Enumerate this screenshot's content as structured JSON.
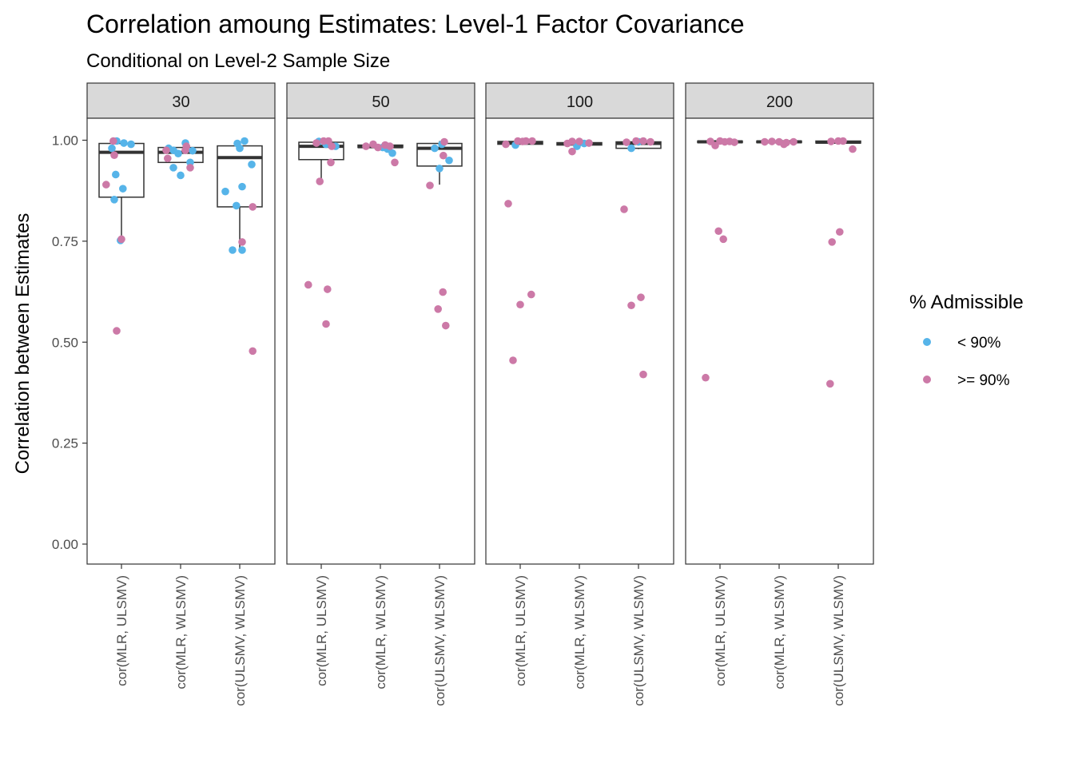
{
  "chart_data": {
    "type": "box-with-jitter",
    "title": "Correlation amoung Estimates: Level-1 Factor Covariance",
    "subtitle": "Conditional on Level-2 Sample Size",
    "xlabel": "",
    "ylabel": "Correlation between Estimates",
    "ylim": [
      -0.05,
      1.05
    ],
    "y_ticks": [
      "0.00",
      "0.25",
      "0.50",
      "0.75",
      "1.00"
    ],
    "grid": false,
    "categories": [
      "cor(MLR, ULSMV)",
      "cor(MLR, WLSMV)",
      "cor(ULSMV, WLSMV)"
    ],
    "legend": {
      "title": "% Admissible",
      "placement": "right",
      "entries": [
        {
          "label": "< 90%",
          "color": "#56B4E9"
        },
        {
          "label": ">= 90%",
          "color": "#CC79A7"
        }
      ]
    },
    "facets": [
      {
        "label": "30",
        "boxes": [
          {
            "q1": 0.859,
            "median": 0.97,
            "q3": 0.992,
            "whisker_low": 0.752,
            "whisker_high": 0.998
          },
          {
            "q1": 0.945,
            "median": 0.97,
            "q3": 0.982,
            "whisker_low": 0.945,
            "whisker_high": 0.982
          },
          {
            "q1": 0.835,
            "median": 0.957,
            "q3": 0.986,
            "whisker_low": 0.727,
            "whisker_high": 0.998
          }
        ],
        "points": [
          {
            "x": -0.2,
            "y": 0.98,
            "group": "< 90%"
          },
          {
            "x": -0.1,
            "y": 0.998,
            "group": "< 90%"
          },
          {
            "x": 0.05,
            "y": 0.993,
            "group": "< 90%"
          },
          {
            "x": 0.2,
            "y": 0.99,
            "group": "< 90%"
          },
          {
            "x": -0.12,
            "y": 0.915,
            "group": "< 90%"
          },
          {
            "x": 0.03,
            "y": 0.88,
            "group": "< 90%"
          },
          {
            "x": -0.15,
            "y": 0.853,
            "group": "< 90%"
          },
          {
            "x": -0.02,
            "y": 0.752,
            "group": "< 90%"
          },
          {
            "x": -0.32,
            "y": 0.89,
            "group": ">= 90%"
          },
          {
            "x": -0.17,
            "y": 0.998,
            "group": ">= 90%"
          },
          {
            "x": -0.15,
            "y": 0.963,
            "group": ">= 90%"
          },
          {
            "x": 0.0,
            "y": 0.755,
            "group": ">= 90%"
          },
          {
            "x": -0.1,
            "y": 0.528,
            "group": ">= 90%"
          },
          {
            "x": -0.25,
            "y": 0.98,
            "group": "< 90%"
          },
          {
            "x": -0.15,
            "y": 0.975,
            "group": "< 90%"
          },
          {
            "x": -0.05,
            "y": 0.967,
            "group": "< 90%"
          },
          {
            "x": 0.1,
            "y": 0.993,
            "group": "< 90%"
          },
          {
            "x": 0.25,
            "y": 0.974,
            "group": "< 90%"
          },
          {
            "x": -0.15,
            "y": 0.932,
            "group": "< 90%"
          },
          {
            "x": 0.0,
            "y": 0.913,
            "group": "< 90%"
          },
          {
            "x": 0.2,
            "y": 0.945,
            "group": "< 90%"
          },
          {
            "x": -0.3,
            "y": 0.975,
            "group": ">= 90%"
          },
          {
            "x": 0.12,
            "y": 0.985,
            "group": ">= 90%"
          },
          {
            "x": 0.1,
            "y": 0.975,
            "group": ">= 90%"
          },
          {
            "x": -0.27,
            "y": 0.955,
            "group": ">= 90%"
          },
          {
            "x": 0.2,
            "y": 0.932,
            "group": ">= 90%"
          },
          {
            "x": -0.05,
            "y": 0.992,
            "group": "< 90%"
          },
          {
            "x": 0.1,
            "y": 0.998,
            "group": "< 90%"
          },
          {
            "x": 0.0,
            "y": 0.98,
            "group": "< 90%"
          },
          {
            "x": -0.3,
            "y": 0.873,
            "group": "< 90%"
          },
          {
            "x": -0.07,
            "y": 0.838,
            "group": "< 90%"
          },
          {
            "x": 0.05,
            "y": 0.885,
            "group": "< 90%"
          },
          {
            "x": 0.25,
            "y": 0.94,
            "group": "< 90%"
          },
          {
            "x": -0.15,
            "y": 0.728,
            "group": "< 90%"
          },
          {
            "x": 0.05,
            "y": 0.728,
            "group": "< 90%"
          },
          {
            "x": 0.05,
            "y": 0.748,
            "group": ">= 90%"
          },
          {
            "x": 0.27,
            "y": 0.835,
            "group": ">= 90%"
          },
          {
            "x": 0.27,
            "y": 0.478,
            "group": ">= 90%"
          }
        ]
      },
      {
        "label": "50",
        "boxes": [
          {
            "q1": 0.952,
            "median": 0.985,
            "q3": 0.995,
            "whisker_low": 0.9,
            "whisker_high": 0.998
          },
          {
            "q1": 0.982,
            "median": 0.984,
            "q3": 0.988,
            "whisker_low": 0.982,
            "whisker_high": 0.988
          },
          {
            "q1": 0.936,
            "median": 0.98,
            "q3": 0.992,
            "whisker_low": 0.89,
            "whisker_high": 0.998
          }
        ],
        "points": [
          {
            "x": -0.05,
            "y": 0.997,
            "group": "< 90%"
          },
          {
            "x": 0.1,
            "y": 0.99,
            "group": "< 90%"
          },
          {
            "x": 0.3,
            "y": 0.985,
            "group": "< 90%"
          },
          {
            "x": -0.1,
            "y": 0.993,
            "group": ">= 90%"
          },
          {
            "x": 0.05,
            "y": 0.998,
            "group": ">= 90%"
          },
          {
            "x": 0.15,
            "y": 0.998,
            "group": ">= 90%"
          },
          {
            "x": 0.22,
            "y": 0.985,
            "group": ">= 90%"
          },
          {
            "x": 0.2,
            "y": 0.945,
            "group": ">= 90%"
          },
          {
            "x": -0.03,
            "y": 0.898,
            "group": ">= 90%"
          },
          {
            "x": -0.27,
            "y": 0.642,
            "group": ">= 90%"
          },
          {
            "x": 0.13,
            "y": 0.631,
            "group": ">= 90%"
          },
          {
            "x": 0.1,
            "y": 0.545,
            "group": ">= 90%"
          },
          {
            "x": 0.05,
            "y": 0.982,
            "group": "< 90%"
          },
          {
            "x": 0.15,
            "y": 0.978,
            "group": "< 90%"
          },
          {
            "x": 0.25,
            "y": 0.968,
            "group": "< 90%"
          },
          {
            "x": -0.3,
            "y": 0.985,
            "group": ">= 90%"
          },
          {
            "x": -0.15,
            "y": 0.99,
            "group": ">= 90%"
          },
          {
            "x": -0.05,
            "y": 0.982,
            "group": ">= 90%"
          },
          {
            "x": 0.1,
            "y": 0.988,
            "group": ">= 90%"
          },
          {
            "x": 0.2,
            "y": 0.985,
            "group": ">= 90%"
          },
          {
            "x": 0.3,
            "y": 0.945,
            "group": ">= 90%"
          },
          {
            "x": 0.05,
            "y": 0.99,
            "group": "< 90%"
          },
          {
            "x": -0.1,
            "y": 0.98,
            "group": "< 90%"
          },
          {
            "x": 0.0,
            "y": 0.93,
            "group": "< 90%"
          },
          {
            "x": 0.2,
            "y": 0.95,
            "group": "< 90%"
          },
          {
            "x": 0.1,
            "y": 0.996,
            "group": ">= 90%"
          },
          {
            "x": 0.08,
            "y": 0.962,
            "group": ">= 90%"
          },
          {
            "x": -0.2,
            "y": 0.888,
            "group": ">= 90%"
          },
          {
            "x": 0.07,
            "y": 0.624,
            "group": ">= 90%"
          },
          {
            "x": -0.03,
            "y": 0.582,
            "group": ">= 90%"
          },
          {
            "x": 0.13,
            "y": 0.541,
            "group": ">= 90%"
          }
        ]
      },
      {
        "label": "100",
        "boxes": [
          {
            "q1": 0.99,
            "median": 0.994,
            "q3": 0.997,
            "whisker_low": 0.99,
            "whisker_high": 0.998
          },
          {
            "q1": 0.988,
            "median": 0.991,
            "q3": 0.994,
            "whisker_low": 0.982,
            "whisker_high": 0.996
          },
          {
            "q1": 0.98,
            "median": 0.992,
            "q3": 0.996,
            "whisker_low": 0.978,
            "whisker_high": 0.998
          }
        ],
        "points": [
          {
            "x": -0.1,
            "y": 0.988,
            "group": "< 90%"
          },
          {
            "x": -0.3,
            "y": 0.99,
            "group": ">= 90%"
          },
          {
            "x": -0.05,
            "y": 0.998,
            "group": ">= 90%"
          },
          {
            "x": 0.05,
            "y": 0.997,
            "group": ">= 90%"
          },
          {
            "x": 0.12,
            "y": 0.998,
            "group": ">= 90%"
          },
          {
            "x": 0.25,
            "y": 0.998,
            "group": ">= 90%"
          },
          {
            "x": -0.25,
            "y": 0.843,
            "group": ">= 90%"
          },
          {
            "x": 0.0,
            "y": 0.593,
            "group": ">= 90%"
          },
          {
            "x": 0.23,
            "y": 0.618,
            "group": ">= 90%"
          },
          {
            "x": -0.15,
            "y": 0.455,
            "group": ">= 90%"
          },
          {
            "x": -0.05,
            "y": 0.985,
            "group": "< 90%"
          },
          {
            "x": 0.1,
            "y": 0.992,
            "group": "< 90%"
          },
          {
            "x": -0.25,
            "y": 0.992,
            "group": ">= 90%"
          },
          {
            "x": -0.15,
            "y": 0.997,
            "group": ">= 90%"
          },
          {
            "x": 0.0,
            "y": 0.997,
            "group": ">= 90%"
          },
          {
            "x": 0.2,
            "y": 0.993,
            "group": ">= 90%"
          },
          {
            "x": -0.15,
            "y": 0.972,
            "group": ">= 90%"
          },
          {
            "x": -0.15,
            "y": 0.98,
            "group": "< 90%"
          },
          {
            "x": 0.0,
            "y": 0.996,
            "group": "< 90%"
          },
          {
            "x": -0.25,
            "y": 0.995,
            "group": ">= 90%"
          },
          {
            "x": -0.05,
            "y": 0.998,
            "group": ">= 90%"
          },
          {
            "x": 0.1,
            "y": 0.998,
            "group": ">= 90%"
          },
          {
            "x": 0.25,
            "y": 0.996,
            "group": ">= 90%"
          },
          {
            "x": -0.3,
            "y": 0.829,
            "group": ">= 90%"
          },
          {
            "x": -0.15,
            "y": 0.591,
            "group": ">= 90%"
          },
          {
            "x": 0.05,
            "y": 0.611,
            "group": ">= 90%"
          },
          {
            "x": 0.1,
            "y": 0.42,
            "group": ">= 90%"
          }
        ]
      },
      {
        "label": "200",
        "boxes": [
          {
            "q1": 0.994,
            "median": 0.996,
            "q3": 0.998,
            "whisker_low": 0.994,
            "whisker_high": 0.999
          },
          {
            "q1": 0.994,
            "median": 0.996,
            "q3": 0.998,
            "whisker_low": 0.994,
            "whisker_high": 0.999
          },
          {
            "q1": 0.993,
            "median": 0.995,
            "q3": 0.998,
            "whisker_low": 0.993,
            "whisker_high": 0.999
          }
        ],
        "points": [
          {
            "x": -0.2,
            "y": 0.997,
            "group": ">= 90%"
          },
          {
            "x": -0.1,
            "y": 0.987,
            "group": ">= 90%"
          },
          {
            "x": 0.0,
            "y": 0.998,
            "group": ">= 90%"
          },
          {
            "x": 0.1,
            "y": 0.996,
            "group": ">= 90%"
          },
          {
            "x": 0.2,
            "y": 0.997,
            "group": ">= 90%"
          },
          {
            "x": 0.3,
            "y": 0.995,
            "group": ">= 90%"
          },
          {
            "x": -0.03,
            "y": 0.775,
            "group": ">= 90%"
          },
          {
            "x": 0.07,
            "y": 0.755,
            "group": ">= 90%"
          },
          {
            "x": -0.3,
            "y": 0.412,
            "group": ">= 90%"
          },
          {
            "x": -0.3,
            "y": 0.996,
            "group": ">= 90%"
          },
          {
            "x": -0.15,
            "y": 0.997,
            "group": ">= 90%"
          },
          {
            "x": 0.0,
            "y": 0.996,
            "group": ">= 90%"
          },
          {
            "x": 0.15,
            "y": 0.994,
            "group": ">= 90%"
          },
          {
            "x": 0.3,
            "y": 0.996,
            "group": ">= 90%"
          },
          {
            "x": 0.1,
            "y": 0.99,
            "group": ">= 90%"
          },
          {
            "x": -0.15,
            "y": 0.997,
            "group": ">= 90%"
          },
          {
            "x": 0.0,
            "y": 0.998,
            "group": ">= 90%"
          },
          {
            "x": 0.1,
            "y": 0.998,
            "group": ">= 90%"
          },
          {
            "x": 0.3,
            "y": 0.978,
            "group": ">= 90%"
          },
          {
            "x": -0.13,
            "y": 0.748,
            "group": ">= 90%"
          },
          {
            "x": 0.03,
            "y": 0.773,
            "group": ">= 90%"
          },
          {
            "x": -0.17,
            "y": 0.397,
            "group": ">= 90%"
          }
        ]
      }
    ]
  }
}
